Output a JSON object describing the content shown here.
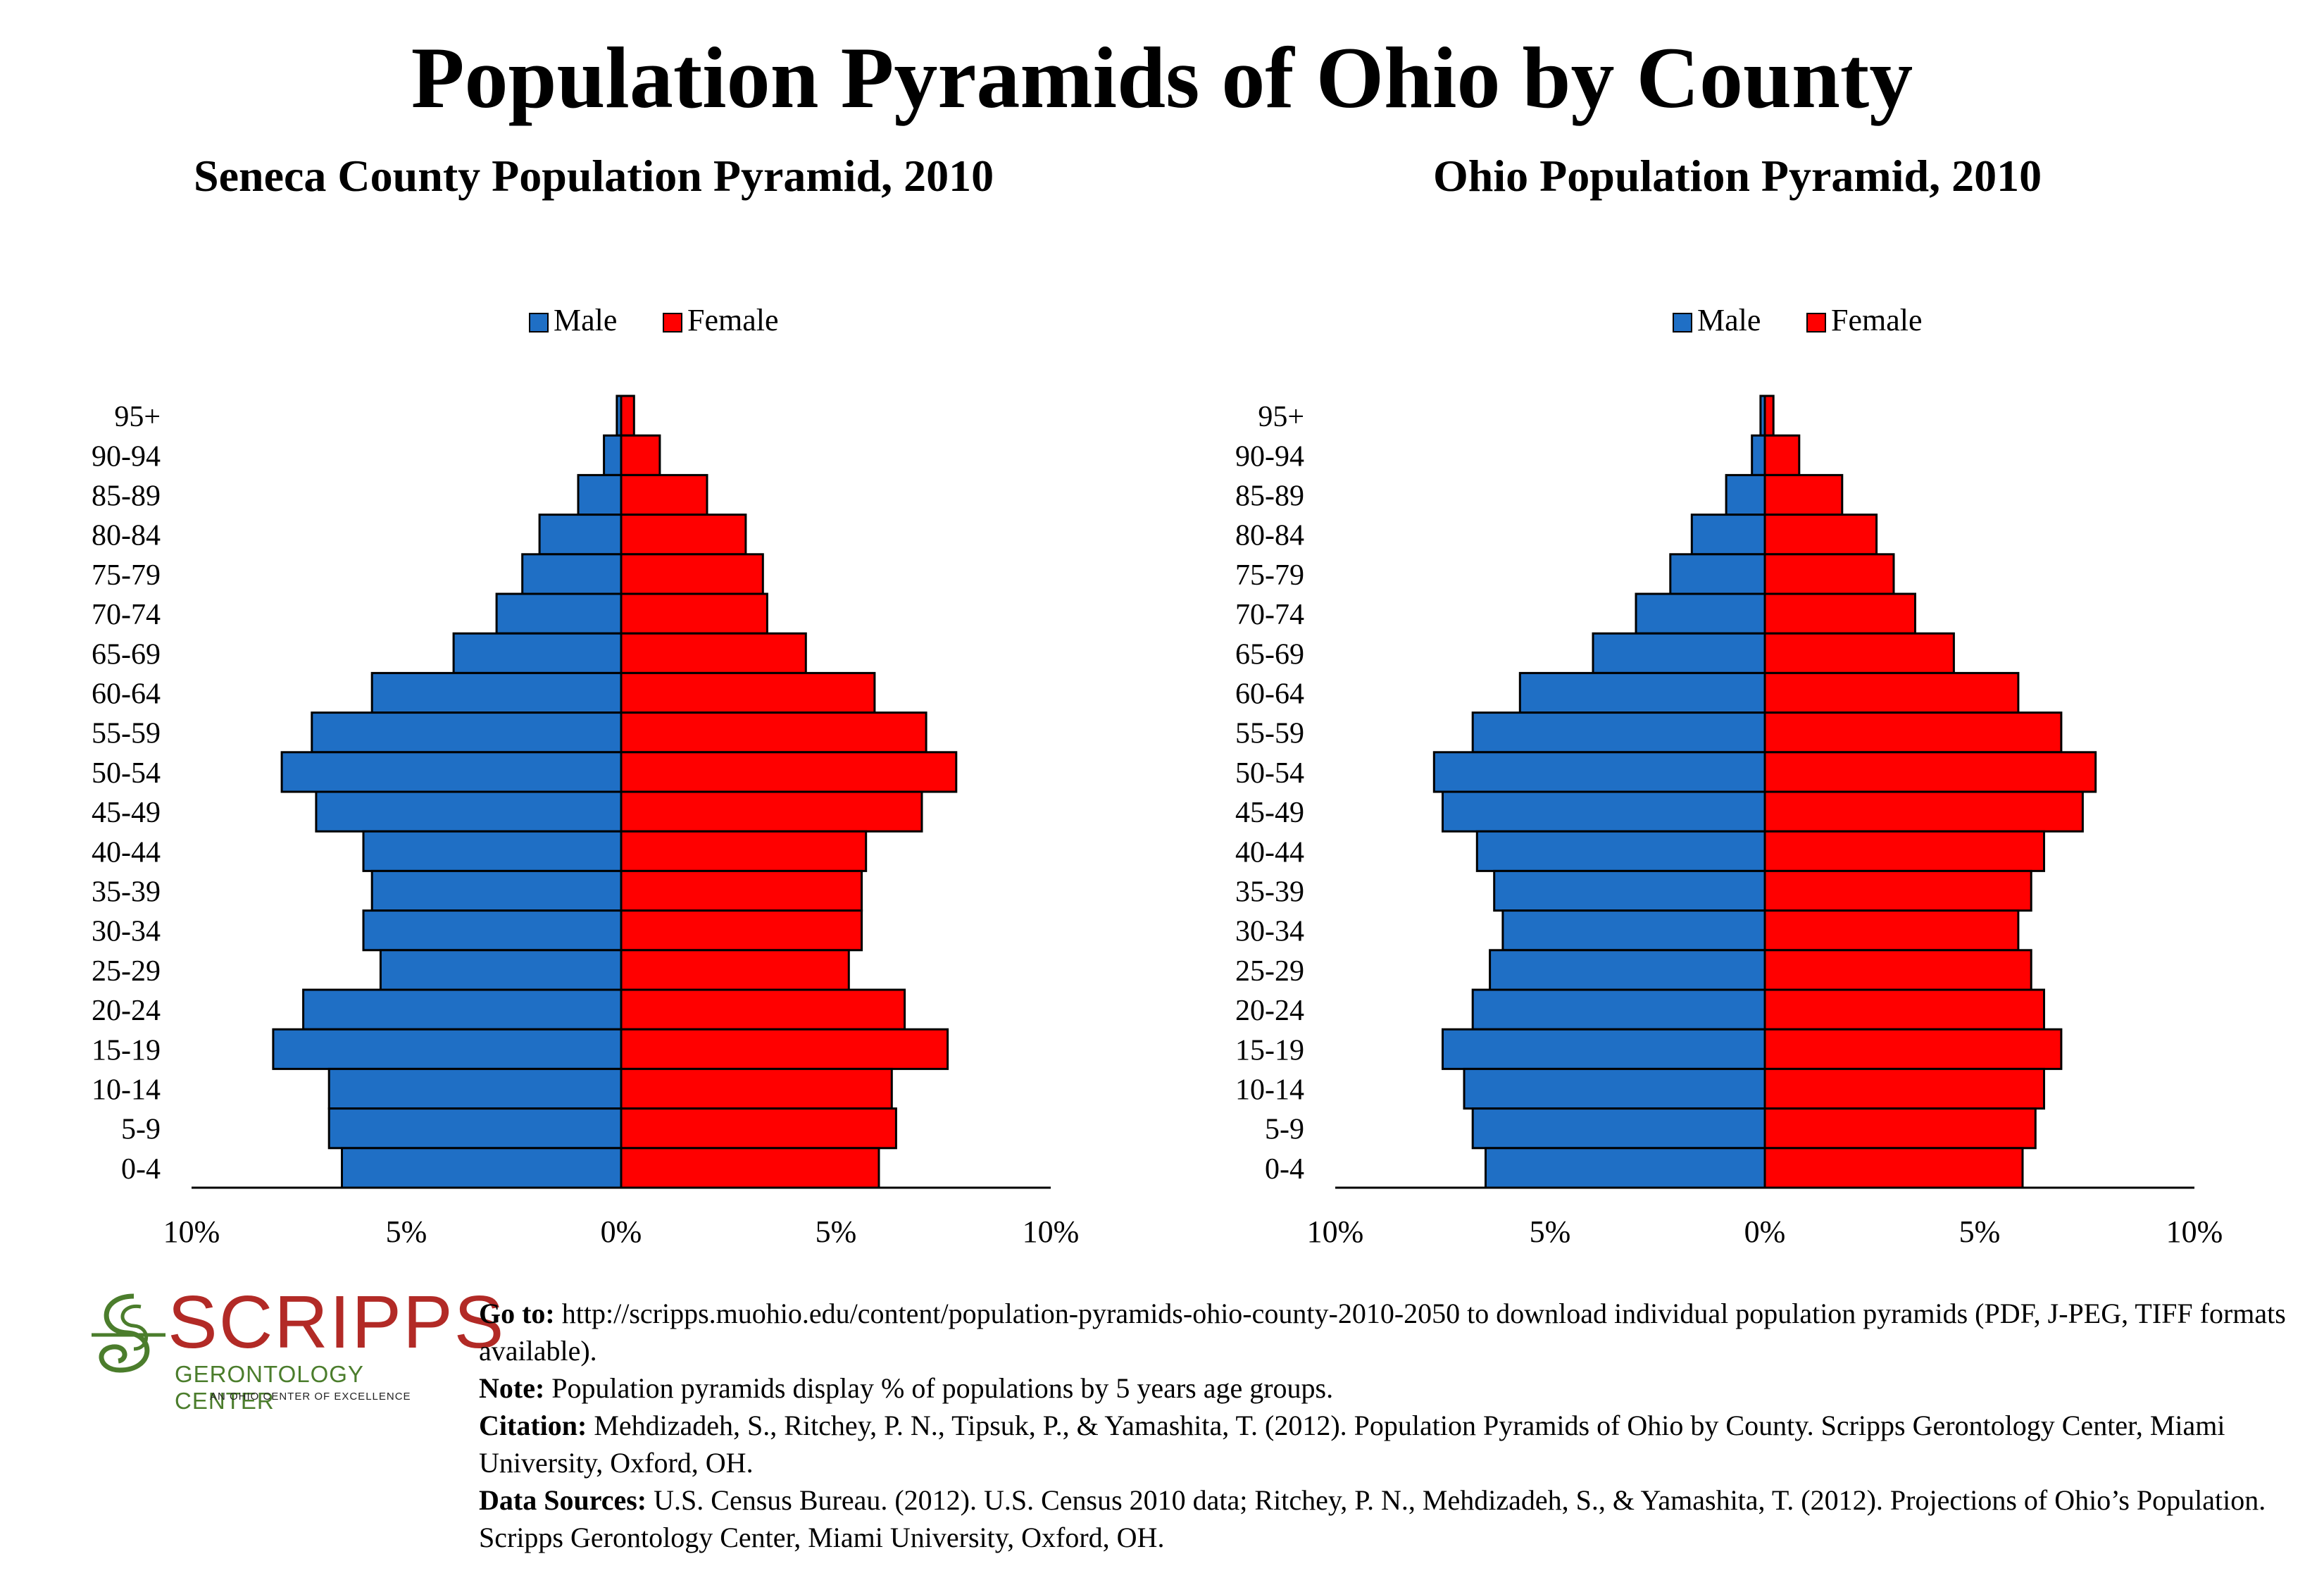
{
  "title": "Population Pyramids of Ohio by County",
  "colors": {
    "male": "#1f6fc5",
    "female": "#ff0000",
    "axis": "#000000"
  },
  "chart_data": [
    {
      "type": "bar",
      "orientation": "horizontal-pyramid",
      "title": "Seneca County Population Pyramid, 2010",
      "legend": {
        "position": "top",
        "entries": [
          "Male",
          "Female"
        ]
      },
      "xlim": [
        -10,
        10
      ],
      "xticks": [
        "10%",
        "5%",
        "0%",
        "5%",
        "10%"
      ],
      "grid": false,
      "categories": [
        "95+",
        "90-94",
        "85-89",
        "80-84",
        "75-79",
        "70-74",
        "65-69",
        "60-64",
        "55-59",
        "50-54",
        "45-49",
        "40-44",
        "35-39",
        "30-34",
        "25-29",
        "20-24",
        "15-19",
        "10-14",
        "5-9",
        "0-4"
      ],
      "series": [
        {
          "name": "Male",
          "values": [
            0.1,
            0.4,
            1.0,
            1.9,
            2.3,
            2.9,
            3.9,
            5.8,
            7.2,
            7.9,
            7.1,
            6.0,
            5.8,
            6.0,
            5.6,
            7.4,
            8.1,
            6.8,
            6.8,
            6.5
          ]
        },
        {
          "name": "Female",
          "values": [
            0.3,
            0.9,
            2.0,
            2.9,
            3.3,
            3.4,
            4.3,
            5.9,
            7.1,
            7.8,
            7.0,
            5.7,
            5.6,
            5.6,
            5.3,
            6.6,
            7.6,
            6.3,
            6.4,
            6.0
          ]
        }
      ]
    },
    {
      "type": "bar",
      "orientation": "horizontal-pyramid",
      "title": "Ohio Population Pyramid, 2010",
      "legend": {
        "position": "top",
        "entries": [
          "Male",
          "Female"
        ]
      },
      "xlim": [
        -10,
        10
      ],
      "xticks": [
        "10%",
        "5%",
        "0%",
        "5%",
        "10%"
      ],
      "grid": false,
      "categories": [
        "95+",
        "90-94",
        "85-89",
        "80-84",
        "75-79",
        "70-74",
        "65-69",
        "60-64",
        "55-59",
        "50-54",
        "45-49",
        "40-44",
        "35-39",
        "30-34",
        "25-29",
        "20-24",
        "15-19",
        "10-14",
        "5-9",
        "0-4"
      ],
      "series": [
        {
          "name": "Male",
          "values": [
            0.1,
            0.3,
            0.9,
            1.7,
            2.2,
            3.0,
            4.0,
            5.7,
            6.8,
            7.7,
            7.5,
            6.7,
            6.3,
            6.1,
            6.4,
            6.8,
            7.5,
            7.0,
            6.8,
            6.5
          ]
        },
        {
          "name": "Female",
          "values": [
            0.2,
            0.8,
            1.8,
            2.6,
            3.0,
            3.5,
            4.4,
            5.9,
            6.9,
            7.7,
            7.4,
            6.5,
            6.2,
            5.9,
            6.2,
            6.5,
            6.9,
            6.5,
            6.3,
            6.0
          ]
        }
      ]
    }
  ],
  "logo": {
    "name": "SCRIPPS",
    "subtitle": "GERONTOLOGY CENTER",
    "tagline": "AN OHIO CENTER OF EXCELLENCE"
  },
  "notes": [
    {
      "label": "Go to:",
      "text": " http://scripps.muohio.edu/content/population-pyramids-ohio-county-2010-2050 to download individual population pyramids (PDF, J-PEG, TIFF formats available)."
    },
    {
      "label": "Note:",
      "text": " Population pyramids display % of populations by 5 years age groups."
    },
    {
      "label": "Citation:",
      "text": " Mehdizadeh, S., Ritchey, P. N., Tipsuk, P., & Yamashita, T. (2012). Population Pyramids of Ohio by County. Scripps Gerontology Center, Miami University, Oxford, OH."
    },
    {
      "label": "Data Sources:",
      "text": " U.S. Census Bureau. (2012). U.S. Census 2010 data; Ritchey, P. N., Mehdizadeh, S., & Yamashita, T. (2012). Projections of Ohio’s Population. Scripps Gerontology Center, Miami University, Oxford, OH."
    }
  ]
}
